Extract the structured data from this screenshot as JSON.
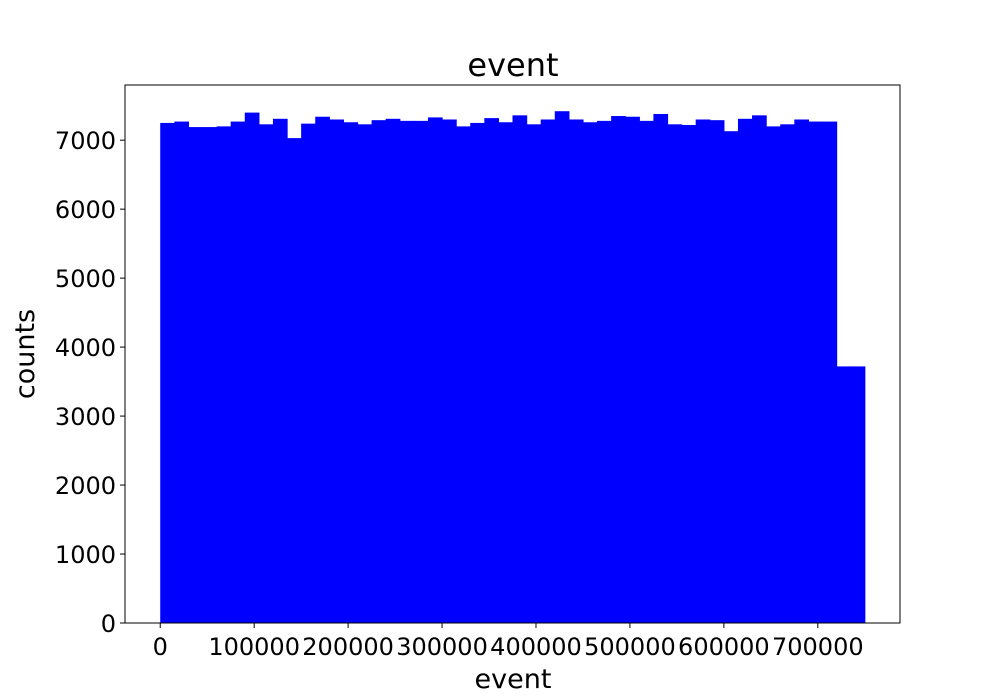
{
  "chart_data": {
    "type": "bar",
    "title": "event",
    "xlabel": "event",
    "ylabel": "counts",
    "color": "#0000ff",
    "xlim": [
      -37500,
      787500
    ],
    "ylim": [
      0,
      7800
    ],
    "grid": false,
    "legend": false,
    "bin_edges": [
      0,
      15000,
      30000,
      45000,
      60000,
      75000,
      90000,
      105000,
      120000,
      135000,
      150000,
      165000,
      180000,
      195000,
      210000,
      225000,
      240000,
      255000,
      270000,
      285000,
      300000,
      315000,
      330000,
      345000,
      360000,
      375000,
      390000,
      405000,
      420000,
      435000,
      450000,
      465000,
      480000,
      495000,
      510000,
      525000,
      540000,
      555000,
      570000,
      585000,
      600000,
      615000,
      630000,
      645000,
      660000,
      675000,
      690000,
      705000,
      720000,
      735000,
      750000
    ],
    "values": [
      7250,
      7270,
      7190,
      7190,
      7200,
      7270,
      7400,
      7230,
      7310,
      7030,
      7240,
      7340,
      7300,
      7260,
      7230,
      7290,
      7310,
      7280,
      7280,
      7330,
      7300,
      7200,
      7250,
      7320,
      7260,
      7360,
      7230,
      7300,
      7420,
      7300,
      7260,
      7280,
      7350,
      7340,
      7280,
      7380,
      7230,
      7220,
      7300,
      7290,
      7130,
      7310,
      7360,
      7200,
      7230,
      7300,
      7270,
      7270,
      3720,
      3720
    ],
    "xticks": [
      0,
      100000,
      200000,
      300000,
      400000,
      500000,
      600000,
      700000
    ],
    "xtick_labels": [
      "0",
      "100000",
      "200000",
      "300000",
      "400000",
      "500000",
      "600000",
      "700000"
    ],
    "yticks": [
      0,
      1000,
      2000,
      3000,
      4000,
      5000,
      6000,
      7000
    ],
    "ytick_labels": [
      "0",
      "1000",
      "2000",
      "3000",
      "4000",
      "5000",
      "6000",
      "7000"
    ]
  }
}
